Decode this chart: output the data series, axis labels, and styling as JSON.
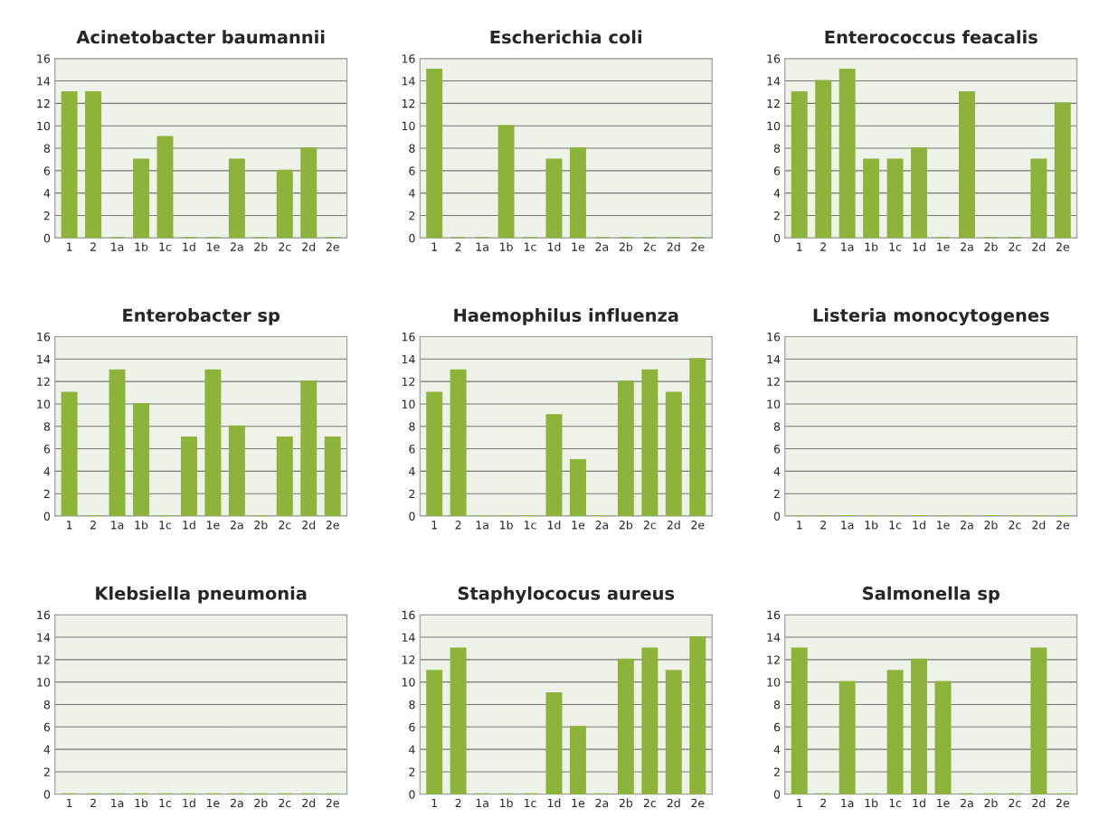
{
  "chart_data": [
    {
      "type": "bar",
      "title": "Acinetobacter baumannii",
      "categories": [
        "1",
        "2",
        "1a",
        "1b",
        "1c",
        "1d",
        "1e",
        "2a",
        "2b",
        "2c",
        "2d",
        "2e"
      ],
      "values": [
        13,
        13,
        0,
        7,
        9,
        0,
        0,
        7,
        0,
        6,
        8,
        0
      ],
      "color": "#8db33a",
      "ylim": [
        0,
        16
      ],
      "yticks": [
        0,
        2,
        4,
        6,
        8,
        10,
        12,
        14,
        16
      ],
      "grid": "y"
    },
    {
      "type": "bar",
      "title": "Escherichia coli",
      "categories": [
        "1",
        "2",
        "1a",
        "1b",
        "1c",
        "1d",
        "1e",
        "2a",
        "2b",
        "2c",
        "2d",
        "2e"
      ],
      "values": [
        15,
        0,
        0,
        10,
        0,
        7,
        8,
        0,
        0,
        0,
        0,
        0
      ],
      "color": "#8db33a",
      "ylim": [
        0,
        16
      ],
      "yticks": [
        0,
        2,
        4,
        6,
        8,
        10,
        12,
        14,
        16
      ],
      "grid": "y"
    },
    {
      "type": "bar",
      "title": "Enterococcus feacalis",
      "categories": [
        "1",
        "2",
        "1a",
        "1b",
        "1c",
        "1d",
        "1e",
        "2a",
        "2b",
        "2c",
        "2d",
        "2e"
      ],
      "values": [
        13,
        14,
        15,
        7,
        7,
        8,
        0,
        13,
        0,
        0,
        7,
        12
      ],
      "color": "#8db33a",
      "ylim": [
        0,
        16
      ],
      "yticks": [
        0,
        2,
        4,
        6,
        8,
        10,
        12,
        14,
        16
      ],
      "grid": "y"
    },
    {
      "type": "bar",
      "title": "Enterobacter sp",
      "categories": [
        "1",
        "2",
        "1a",
        "1b",
        "1c",
        "1d",
        "1e",
        "2a",
        "2b",
        "2c",
        "2d",
        "2e"
      ],
      "values": [
        11,
        0,
        13,
        10,
        0,
        7,
        13,
        8,
        0,
        7,
        12,
        7
      ],
      "color": "#8db33a",
      "ylim": [
        0,
        16
      ],
      "yticks": [
        0,
        2,
        4,
        6,
        8,
        10,
        12,
        14,
        16
      ],
      "grid": "y"
    },
    {
      "type": "bar",
      "title": "Haemophilus influenza",
      "categories": [
        "1",
        "2",
        "1a",
        "1b",
        "1c",
        "1d",
        "1e",
        "2a",
        "2b",
        "2c",
        "2d",
        "2e"
      ],
      "values": [
        11,
        13,
        0,
        0,
        0,
        9,
        5,
        0,
        12,
        13,
        11,
        14
      ],
      "color": "#8db33a",
      "ylim": [
        0,
        16
      ],
      "yticks": [
        0,
        2,
        4,
        6,
        8,
        10,
        12,
        14,
        16
      ],
      "grid": "y"
    },
    {
      "type": "bar",
      "title": "Listeria monocytogenes",
      "categories": [
        "1",
        "2",
        "1a",
        "1b",
        "1c",
        "1d",
        "1e",
        "2a",
        "2b",
        "2c",
        "2d",
        "2e"
      ],
      "values": [
        0,
        0,
        0,
        0,
        0,
        0,
        0,
        0,
        0,
        0,
        0,
        0
      ],
      "color": "#8db33a",
      "ylim": [
        0,
        16
      ],
      "yticks": [
        0,
        2,
        4,
        6,
        8,
        10,
        12,
        14,
        16
      ],
      "grid": "y"
    },
    {
      "type": "bar",
      "title": "Klebsiella pneumonia",
      "categories": [
        "1",
        "2",
        "1a",
        "1b",
        "1c",
        "1d",
        "1e",
        "2a",
        "2b",
        "2c",
        "2d",
        "2e"
      ],
      "values": [
        0,
        0,
        0,
        0,
        0,
        0,
        0,
        0,
        0,
        0,
        0,
        0
      ],
      "color": "#8db33a",
      "ylim": [
        0,
        16
      ],
      "yticks": [
        0,
        2,
        4,
        6,
        8,
        10,
        12,
        14,
        16
      ],
      "grid": "y"
    },
    {
      "type": "bar",
      "title": "Staphylococus aureus",
      "categories": [
        "1",
        "2",
        "1a",
        "1b",
        "1c",
        "1d",
        "1e",
        "2a",
        "2b",
        "2c",
        "2d",
        "2e"
      ],
      "values": [
        11,
        13,
        0,
        0,
        0,
        9,
        6,
        0,
        12,
        13,
        11,
        14
      ],
      "color": "#8db33a",
      "ylim": [
        0,
        16
      ],
      "yticks": [
        0,
        2,
        4,
        6,
        8,
        10,
        12,
        14,
        16
      ],
      "grid": "y"
    },
    {
      "type": "bar",
      "title": "Salmonella sp",
      "categories": [
        "1",
        "2",
        "1a",
        "1b",
        "1c",
        "1d",
        "1e",
        "2a",
        "2b",
        "2c",
        "2d",
        "2e"
      ],
      "values": [
        13,
        0,
        10,
        0,
        11,
        12,
        10,
        0,
        0,
        0,
        13,
        0
      ],
      "color": "#8db33a",
      "ylim": [
        0,
        16
      ],
      "yticks": [
        0,
        2,
        4,
        6,
        8,
        10,
        12,
        14,
        16
      ],
      "grid": "y"
    }
  ]
}
